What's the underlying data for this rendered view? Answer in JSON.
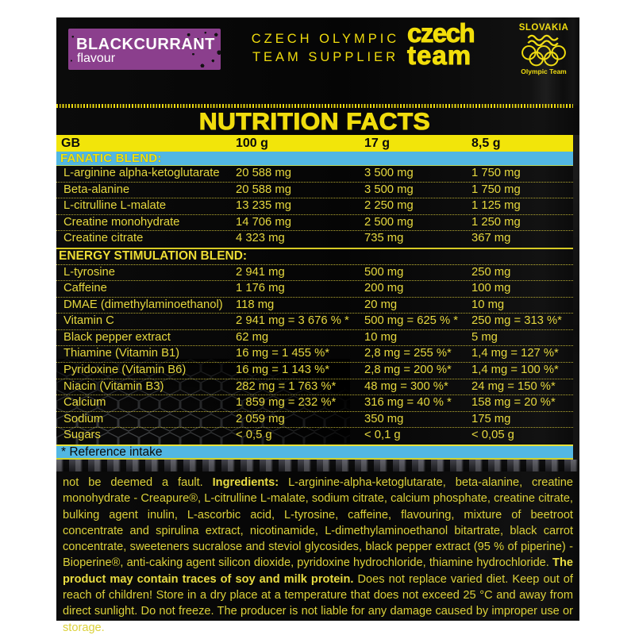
{
  "brand": {
    "flavour": {
      "name": "BLACKCURRANT",
      "word": "flavour"
    },
    "supplier_line1": "CZECH OLYMPIC",
    "supplier_line2": "TEAM SUPPLIER",
    "team_logo_line1": "czech",
    "team_logo_line2": "team",
    "slovakia": {
      "title": "SLOVAKIA",
      "subtitle": "Olympic Team"
    }
  },
  "colors": {
    "yellow": "#f2e50a",
    "blue": "#52b7e3",
    "purple": "#8b3f8d",
    "label_black": "#0a0a0a",
    "white": "#ffffff"
  },
  "nutrition": {
    "title": "NUTRITION FACTS",
    "columns": [
      "GB",
      "100 g",
      "17 g",
      "8,5 g"
    ],
    "sections": [
      {
        "name": "FANATIC BLEND:",
        "bar": true,
        "rows": [
          [
            "L-arginine alpha-ketoglutarate",
            "20 588 mg",
            "3 500 mg",
            "1 750 mg"
          ],
          [
            "Beta-alanine",
            "20 588 mg",
            "3 500 mg",
            "1 750 mg"
          ],
          [
            "L-citrulline L-malate",
            "13 235 mg",
            "2 250 mg",
            "1 125 mg"
          ],
          [
            "Creatine monohydrate",
            "14 706 mg",
            "2 500 mg",
            "1 250 mg"
          ],
          [
            "Creatine citrate",
            "4 323 mg",
            "735 mg",
            "367 mg"
          ]
        ]
      },
      {
        "name": "ENERGY STIMULATION BLEND:",
        "bar": false,
        "rows": [
          [
            "L-tyrosine",
            "2 941 mg",
            "500 mg",
            "250 mg"
          ],
          [
            "Caffeine",
            "1 176 mg",
            "200 mg",
            "100 mg"
          ],
          [
            "DMAE (dimethylaminoethanol)",
            "118 mg",
            "20 mg",
            "10 mg"
          ],
          [
            "Vitamin C",
            "2 941 mg = 3 676 % *",
            "500 mg = 625 % *",
            "250 mg = 313 %*"
          ],
          [
            "Black pepper extract",
            "62 mg",
            "10 mg",
            "5 mg"
          ],
          [
            "Thiamine (Vitamin B1)",
            "16 mg = 1 455 %*",
            "2,8 mg = 255 %*",
            "1,4 mg = 127 %*"
          ],
          [
            "Pyridoxine (Vitamin B6)",
            "16 mg = 1 143 %*",
            "2,8 mg = 200 %*",
            "1,4 mg = 100 %*"
          ],
          [
            "Niacin (Vitamin B3)",
            "282 mg = 1 763 %*",
            "48 mg = 300 %*",
            "24 mg = 150 %*"
          ],
          [
            "Calcium",
            "1 859 mg = 232 %*",
            "316 mg = 40 % *",
            "158 mg = 20 %*"
          ],
          [
            "Sodium",
            "2 059 mg",
            "350 mg",
            "175 mg"
          ],
          [
            "Sugars",
            "< 0,5 g",
            "< 0,1 g",
            "< 0,05 g"
          ]
        ]
      }
    ],
    "footnote": "* Reference intake"
  },
  "ingredients": {
    "segments": [
      {
        "text": "not be deemed a fault. ",
        "bold": false
      },
      {
        "text": "Ingredients: ",
        "bold": true
      },
      {
        "text": "L-arginine-alpha-ketoglutarate, beta-alanine, creatine monohydrate - Creapure®, L-citrulline L-malate, sodium citrate, calcium phosphate, creatine citrate, bulking agent inulin, L-ascorbic acid, L-tyrosine, caffeine, flavouring, mixture of beetroot concentrate and spirulina extract, nicotinamide, L-dimethylaminoethanol bitartrate, black carrot concentrate, sweeteners sucralose and steviol glycosides, black pepper extract (95 % of piperine) - Bioperine®, anti-caking agent silicon dioxide, pyridoxine hydrochloride, thiamine hydrochloride. ",
        "bold": false
      },
      {
        "text": "The product may contain traces of soy and milk protein. ",
        "bold": true
      },
      {
        "text": "Does not replace varied diet. Keep out of reach of children! Store in a dry place at a temperature that does not exceed 25 °C and away from direct sunlight. Do not freeze. The producer is not liable for any damage caused by improper use or storage.",
        "bold": false
      }
    ]
  }
}
